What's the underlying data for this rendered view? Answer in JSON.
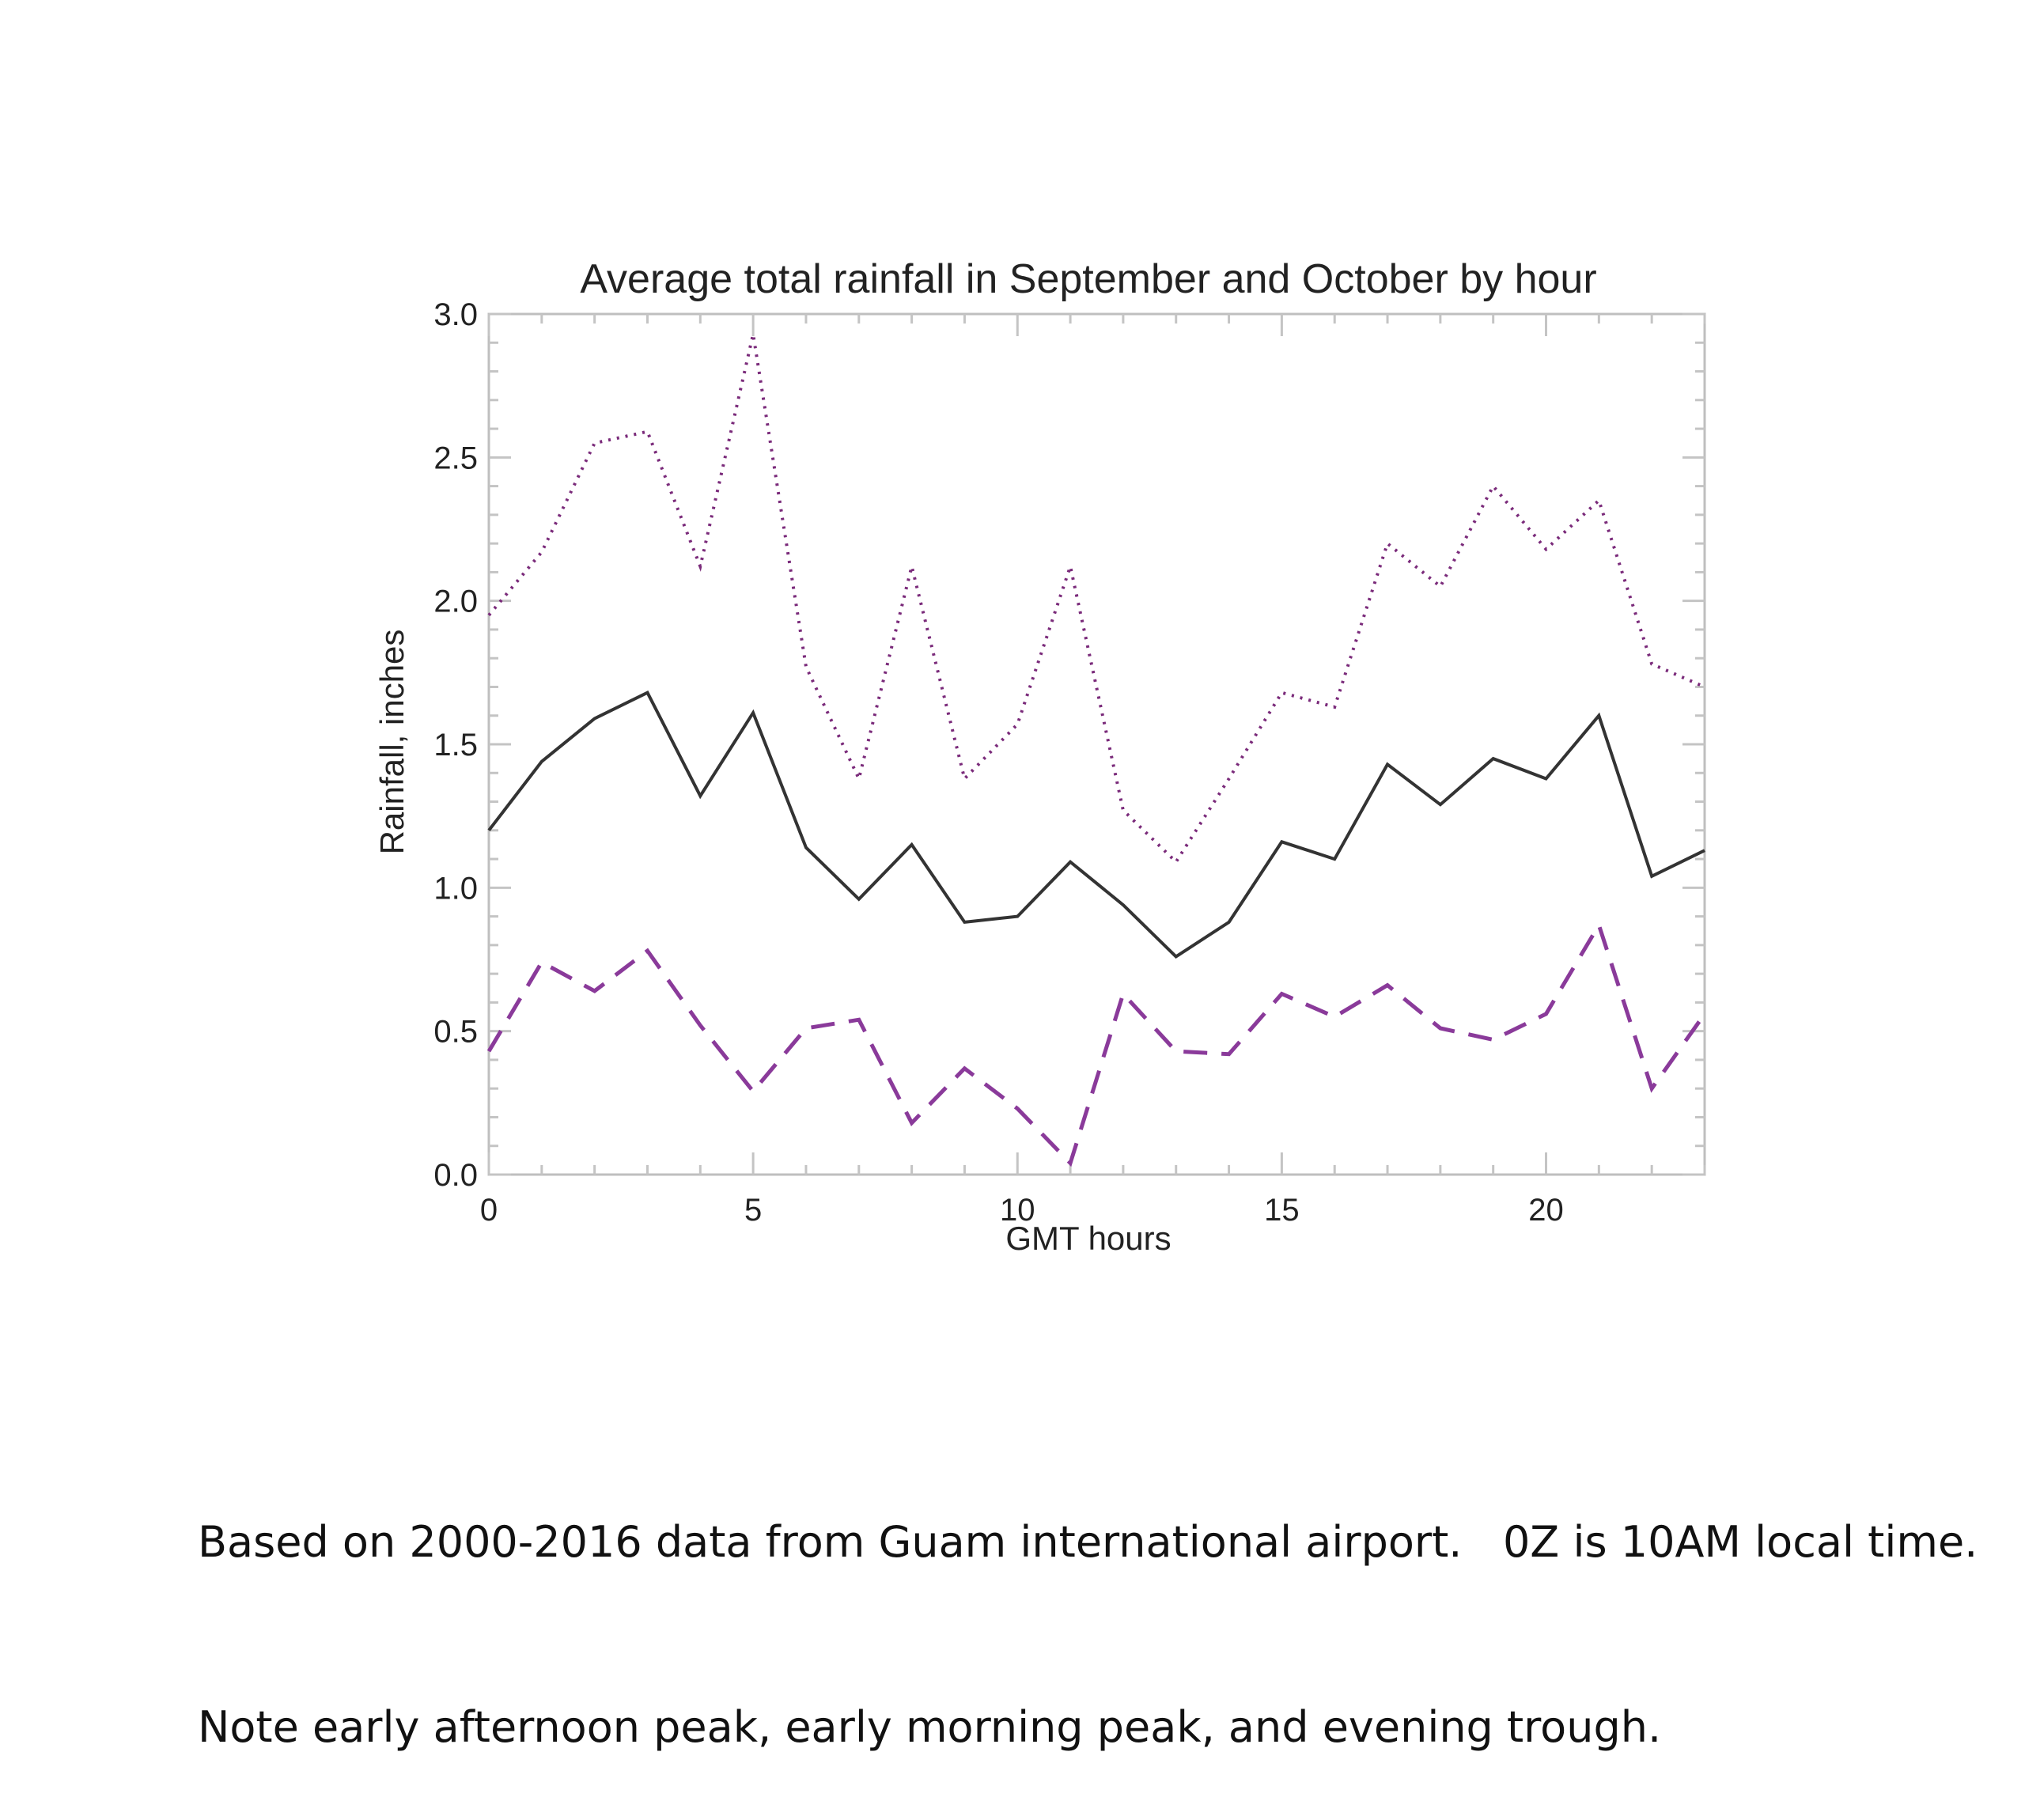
{
  "chart_data": {
    "type": "line",
    "title": "Average total rainfall in September and October by hour",
    "xlabel": "GMT hours",
    "ylabel": "Rainfall, inches",
    "xlim": [
      0,
      23
    ],
    "ylim": [
      0.0,
      3.0
    ],
    "x_ticks": [
      0,
      5,
      10,
      15,
      20
    ],
    "x_tick_labels": [
      "0",
      "5",
      "10",
      "15",
      "20"
    ],
    "y_ticks": [
      0.0,
      0.5,
      1.0,
      1.5,
      2.0,
      2.5,
      3.0
    ],
    "y_tick_labels": [
      "0.0",
      "0.5",
      "1.0",
      "1.5",
      "2.0",
      "2.5",
      "3.0"
    ],
    "grid": false,
    "x": [
      0,
      1,
      2,
      3,
      4,
      5,
      6,
      7,
      8,
      9,
      10,
      11,
      12,
      13,
      14,
      15,
      16,
      17,
      18,
      19,
      20,
      21,
      22,
      23
    ],
    "series": [
      {
        "style": "dotted",
        "color": "#7a2a7a",
        "values": [
          1.95,
          2.17,
          2.55,
          2.59,
          2.12,
          2.93,
          1.77,
          1.38,
          2.12,
          1.38,
          1.57,
          2.12,
          1.27,
          1.09,
          1.38,
          1.68,
          1.63,
          2.2,
          2.05,
          2.4,
          2.18,
          2.35,
          1.78,
          1.7
        ]
      },
      {
        "style": "solid",
        "color": "#333333",
        "values": [
          1.2,
          1.44,
          1.59,
          1.68,
          1.32,
          1.61,
          1.14,
          0.96,
          1.15,
          0.88,
          0.9,
          1.09,
          0.94,
          0.76,
          0.88,
          1.16,
          1.1,
          1.43,
          1.29,
          1.45,
          1.38,
          1.6,
          1.04,
          1.13
        ]
      },
      {
        "style": "dashed",
        "color": "#8a3a9a",
        "values": [
          0.43,
          0.74,
          0.64,
          0.78,
          0.52,
          0.29,
          0.51,
          0.54,
          0.18,
          0.37,
          0.23,
          0.04,
          0.63,
          0.43,
          0.42,
          0.63,
          0.55,
          0.66,
          0.51,
          0.47,
          0.56,
          0.87,
          0.3,
          0.56
        ]
      }
    ]
  },
  "caption": {
    "line1": "Based on 2000-2016 data from Guam international airport.   0Z is 10AM local time.",
    "line2": "Note early afternoon peak, early morning peak, and evening trough."
  }
}
